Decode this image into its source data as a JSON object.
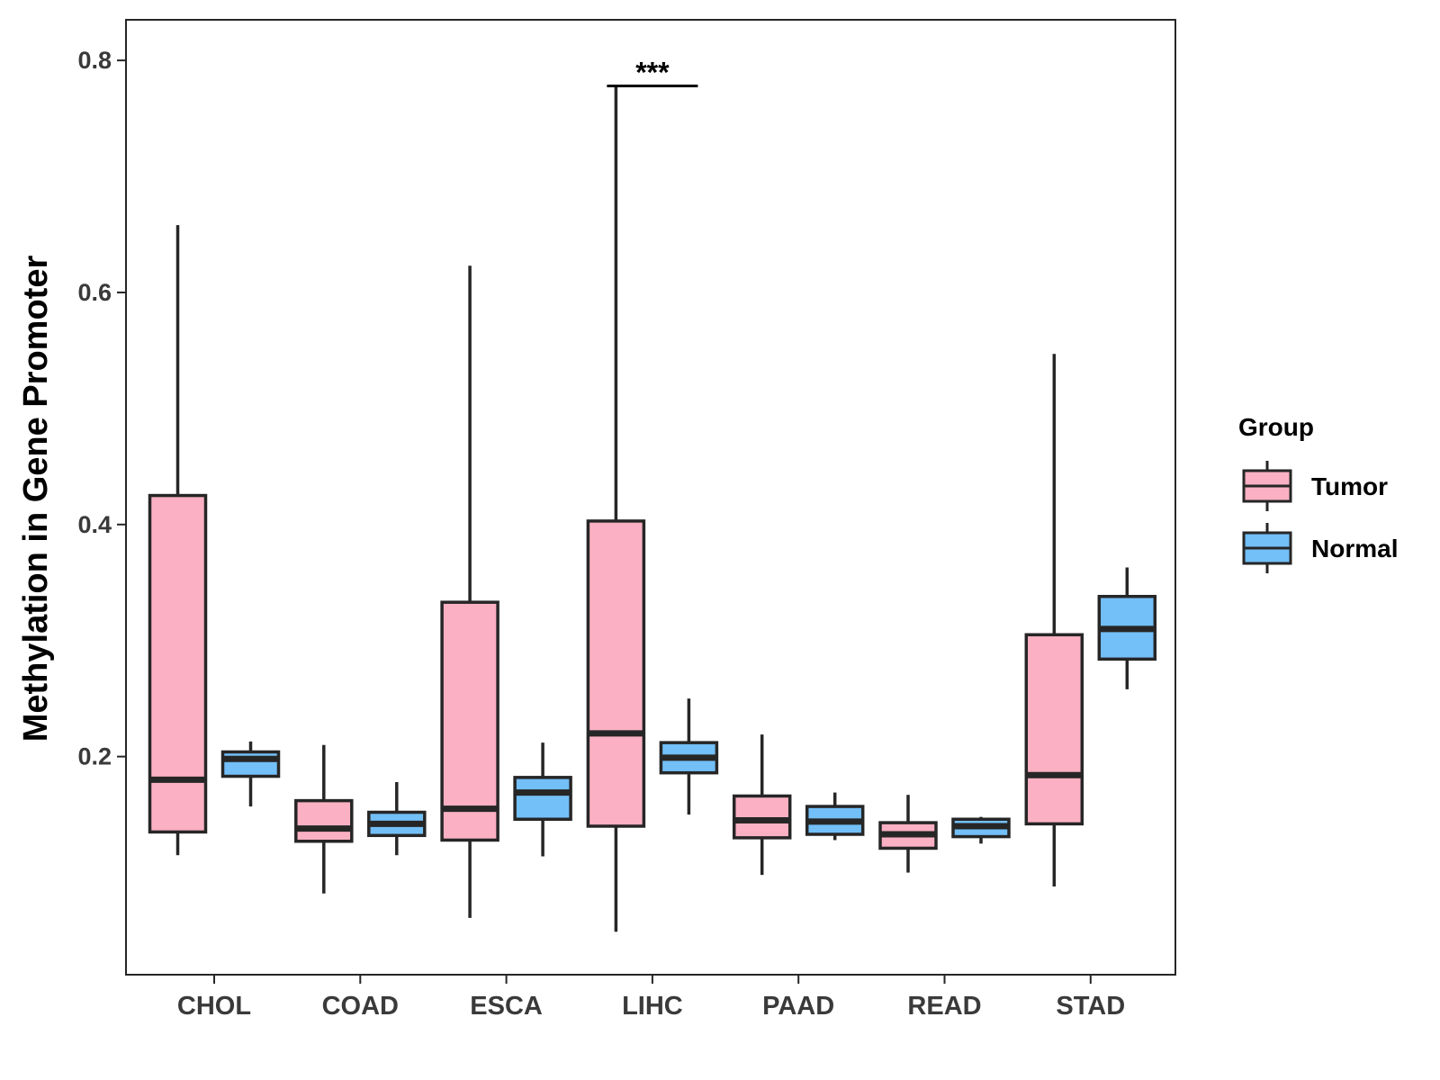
{
  "chart_data": {
    "type": "boxplot",
    "title": "",
    "xlabel": "",
    "ylabel": "Methylation in Gene Promoter",
    "ylim": [
      0.012,
      0.835
    ],
    "yticks": [
      0.2,
      0.4,
      0.6,
      0.8
    ],
    "ytick_labels": [
      "0.2",
      "0.4",
      "0.6",
      "0.8"
    ],
    "categories": [
      "CHOL",
      "COAD",
      "ESCA",
      "LIHC",
      "PAAD",
      "READ",
      "STAD"
    ],
    "legend": {
      "title": "Group",
      "position": "right",
      "entries": [
        {
          "name": "Tumor",
          "color": "#FBB1C3"
        },
        {
          "name": "Normal",
          "color": "#73BFF8"
        }
      ]
    },
    "series": [
      {
        "name": "Tumor",
        "color": "#FBB1C3",
        "boxes": [
          {
            "whisker_low": 0.115,
            "q1": 0.135,
            "median": 0.18,
            "q3": 0.425,
            "whisker_high": 0.658
          },
          {
            "whisker_low": 0.082,
            "q1": 0.127,
            "median": 0.138,
            "q3": 0.162,
            "whisker_high": 0.21
          },
          {
            "whisker_low": 0.061,
            "q1": 0.128,
            "median": 0.155,
            "q3": 0.333,
            "whisker_high": 0.623
          },
          {
            "whisker_low": 0.049,
            "q1": 0.14,
            "median": 0.22,
            "q3": 0.403,
            "whisker_high": 0.779
          },
          {
            "whisker_low": 0.098,
            "q1": 0.13,
            "median": 0.145,
            "q3": 0.166,
            "whisker_high": 0.219
          },
          {
            "whisker_low": 0.1,
            "q1": 0.121,
            "median": 0.133,
            "q3": 0.143,
            "whisker_high": 0.167
          },
          {
            "whisker_low": 0.088,
            "q1": 0.142,
            "median": 0.184,
            "q3": 0.305,
            "whisker_high": 0.547
          }
        ]
      },
      {
        "name": "Normal",
        "color": "#73BFF8",
        "boxes": [
          {
            "whisker_low": 0.157,
            "q1": 0.183,
            "median": 0.198,
            "q3": 0.204,
            "whisker_high": 0.213
          },
          {
            "whisker_low": 0.115,
            "q1": 0.132,
            "median": 0.142,
            "q3": 0.152,
            "whisker_high": 0.178
          },
          {
            "whisker_low": 0.114,
            "q1": 0.146,
            "median": 0.169,
            "q3": 0.182,
            "whisker_high": 0.212
          },
          {
            "whisker_low": 0.15,
            "q1": 0.186,
            "median": 0.199,
            "q3": 0.212,
            "whisker_high": 0.25
          },
          {
            "whisker_low": 0.128,
            "q1": 0.133,
            "median": 0.144,
            "q3": 0.157,
            "whisker_high": 0.169
          },
          {
            "whisker_low": 0.125,
            "q1": 0.131,
            "median": 0.14,
            "q3": 0.146,
            "whisker_high": 0.148
          },
          {
            "whisker_low": 0.258,
            "q1": 0.284,
            "median": 0.31,
            "q3": 0.338,
            "whisker_high": 0.363
          }
        ]
      }
    ],
    "annotations": [
      {
        "category": "LIHC",
        "text": "***",
        "y": 0.778
      }
    ]
  }
}
